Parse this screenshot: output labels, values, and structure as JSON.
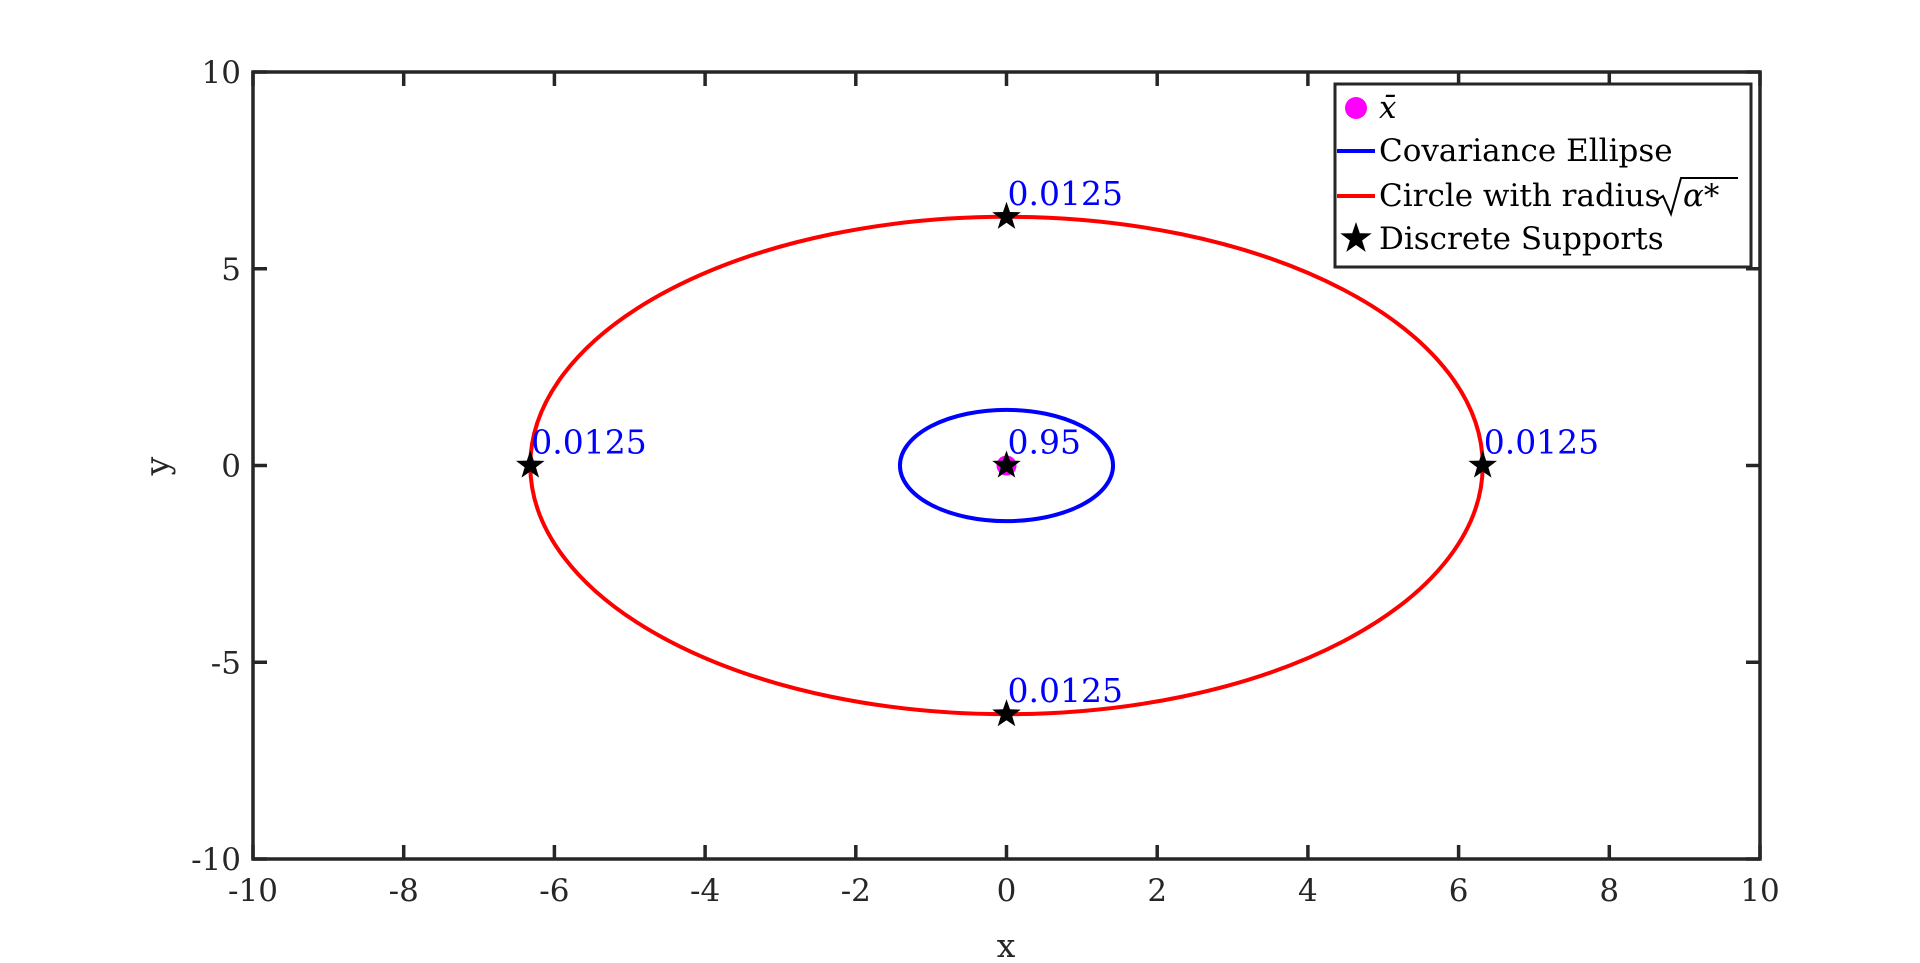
{
  "chart_data": {
    "type": "scatter",
    "xlabel": "x",
    "ylabel": "y",
    "xlim": [
      -10,
      10
    ],
    "ylim": [
      -10,
      10
    ],
    "xticks": [
      -10,
      -8,
      -6,
      -4,
      -2,
      0,
      2,
      4,
      6,
      8,
      10
    ],
    "yticks": [
      -10,
      -5,
      0,
      5,
      10
    ],
    "xtick_labels": [
      "-10",
      "-8",
      "-6",
      "-4",
      "-2",
      "0",
      "2",
      "4",
      "6",
      "8",
      "10"
    ],
    "ytick_labels": [
      "-10",
      "-5",
      "0",
      "5",
      "10"
    ],
    "grid": false,
    "legend_position": "top-right",
    "series": [
      {
        "name": "x̄",
        "kind": "point",
        "color": "#ff00ff",
        "points": [
          {
            "x": 0,
            "y": 0
          }
        ]
      },
      {
        "name": "Covariance Ellipse",
        "kind": "ellipse",
        "color": "#0000ff",
        "center": [
          0,
          0
        ],
        "radius_x": 1.414,
        "radius_y": 1.414
      },
      {
        "name": "Circle with radius √α*",
        "kind": "ellipse",
        "color": "#ff0000",
        "center": [
          0,
          0
        ],
        "radius_x": 6.32,
        "radius_y": 6.32
      },
      {
        "name": "Discrete Supports",
        "kind": "star",
        "color": "#000000",
        "points": [
          {
            "x": 0,
            "y": 0,
            "label": "0.95"
          },
          {
            "x": 0,
            "y": 6.32,
            "label": "0.0125"
          },
          {
            "x": 0,
            "y": -6.32,
            "label": "0.0125"
          },
          {
            "x": -6.32,
            "y": 0,
            "label": "0.0125"
          },
          {
            "x": 6.32,
            "y": 0,
            "label": "0.0125"
          }
        ]
      }
    ],
    "legend": {
      "xbar": "x̄",
      "cov": "Covariance Ellipse",
      "circle_prefix": "Circle with radius",
      "circle_symbol": "α*",
      "supports": "Discrete Supports"
    }
  }
}
